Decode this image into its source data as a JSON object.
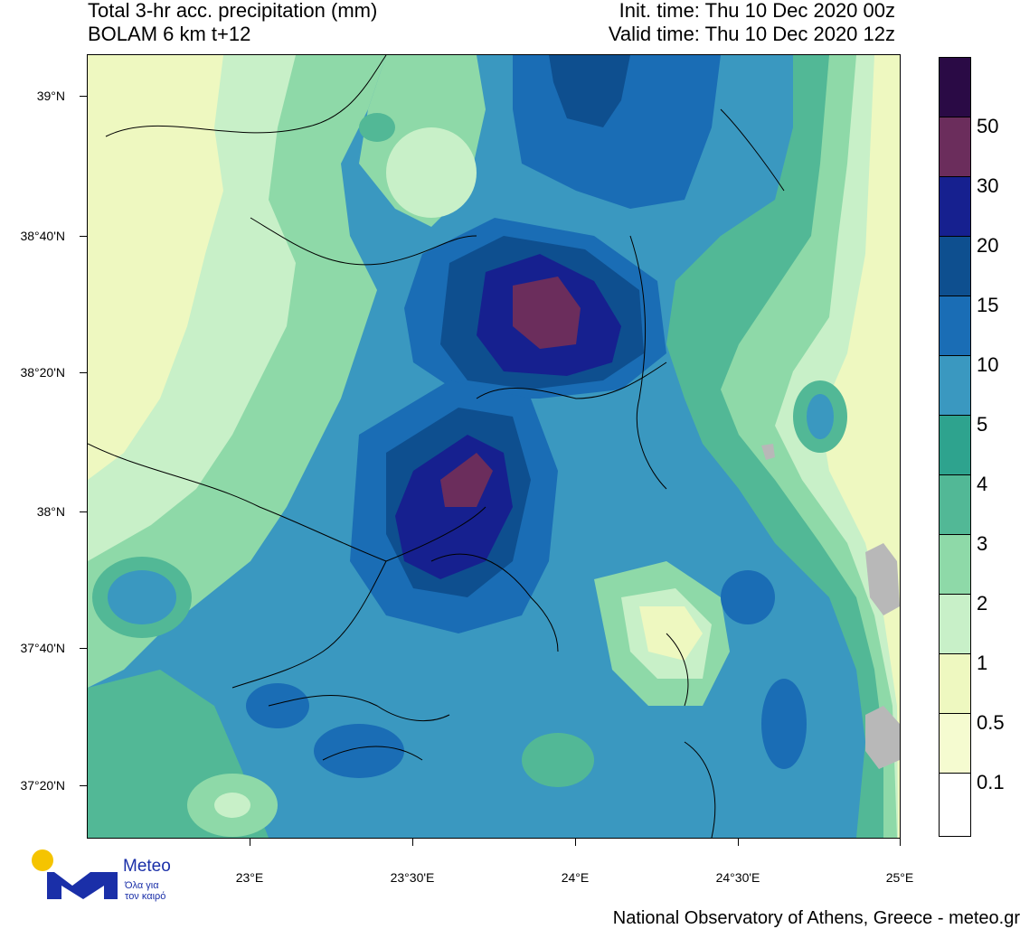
{
  "header": {
    "title_line1": "Total 3-hr acc. precipitation (mm)",
    "title_line2": "BOLAM 6 km t+12",
    "init_time": "Init. time: Thu 10 Dec 2020 00z",
    "valid_time": "Valid time: Thu 10 Dec 2020 12z"
  },
  "axes": {
    "lat_ticks": [
      "39°N",
      "38°40'N",
      "38°20'N",
      "38°N",
      "37°40'N",
      "37°20'N"
    ],
    "lon_ticks": [
      "23°E",
      "23°30'E",
      "24°E",
      "24°30'E",
      "25°E"
    ]
  },
  "colorbar": {
    "levels": [
      "50",
      "30",
      "20",
      "15",
      "10",
      "5",
      "4",
      "3",
      "2",
      "1",
      "0.5",
      "0.1"
    ],
    "colors": [
      "#2a0a45",
      "#6b2d5c",
      "#16208f",
      "#0e4f8f",
      "#1a6db5",
      "#3a98c0",
      "#2ea38e",
      "#52b896",
      "#8ed9a8",
      "#c8f0c8",
      "#eef8c0",
      "#f5fbd0",
      "#ffffff"
    ]
  },
  "branding": {
    "logo_name": "Meteo",
    "logo_tagline_1": "Όλα για",
    "logo_tagline_2": "τον καιρό",
    "footer": "National Observatory of Athens, Greece - meteo.gr"
  }
}
